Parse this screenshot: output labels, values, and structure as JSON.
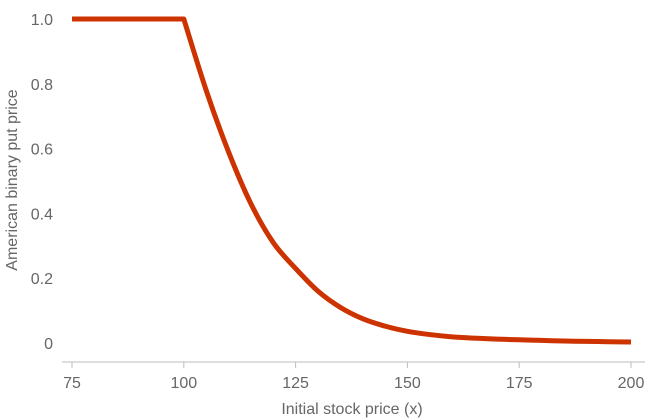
{
  "chart_data": {
    "type": "line",
    "title": "",
    "xlabel": "Initial stock price (x)",
    "ylabel": "American binary put price",
    "xlim": [
      75,
      200
    ],
    "ylim": [
      0,
      1
    ],
    "x_ticks": [
      75,
      100,
      125,
      150,
      175,
      200
    ],
    "x_tick_labels": [
      "75",
      "100",
      "125",
      "150",
      "175",
      "200"
    ],
    "y_ticks": [
      0,
      0.2,
      0.4,
      0.6,
      0.8,
      1.0
    ],
    "y_tick_labels": [
      "0",
      "0.2",
      "0.4",
      "0.6",
      "0.8",
      "1.0"
    ],
    "grid": false,
    "series": [
      {
        "color": "#cc3300",
        "x": [
          75,
          80,
          85,
          90,
          95,
          100,
          105,
          110,
          115,
          120,
          125,
          130,
          135,
          140,
          145,
          150,
          155,
          160,
          165,
          170,
          175,
          180,
          185,
          190,
          195,
          200
        ],
        "values": [
          1,
          1,
          1,
          1,
          1,
          1,
          0.78,
          0.59,
          0.43,
          0.31,
          0.23,
          0.16,
          0.11,
          0.075,
          0.052,
          0.036,
          0.026,
          0.019,
          0.015,
          0.012,
          0.01,
          0.008,
          0.006,
          0.005,
          0.004,
          0.003
        ]
      }
    ]
  }
}
